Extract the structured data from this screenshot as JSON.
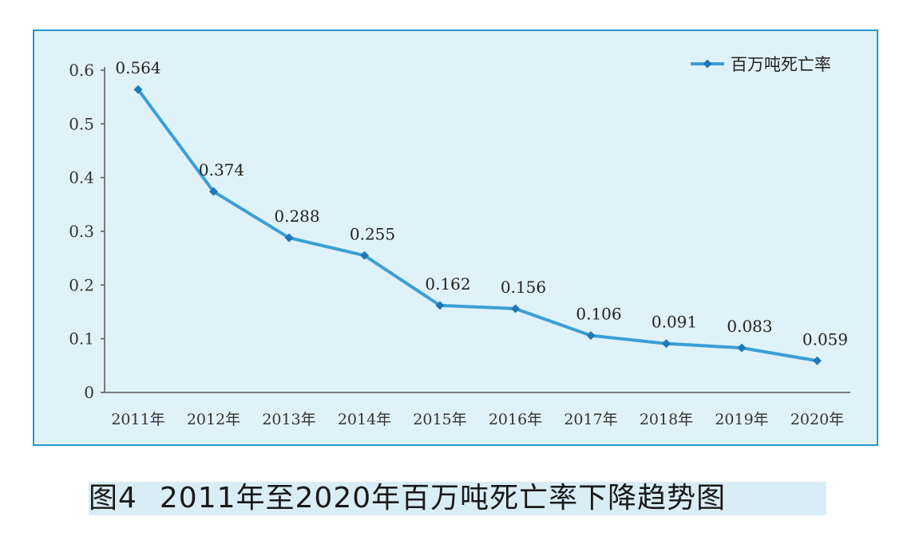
{
  "chart_data": {
    "type": "line",
    "title": "",
    "xlabel": "",
    "ylabel": "",
    "categories": [
      "2011年",
      "2012年",
      "2013年",
      "2014年",
      "2015年",
      "2016年",
      "2017年",
      "2018年",
      "2019年",
      "2020年"
    ],
    "series": [
      {
        "name": "百万吨死亡率",
        "values": [
          0.564,
          0.374,
          0.288,
          0.255,
          0.162,
          0.156,
          0.106,
          0.091,
          0.083,
          0.059
        ],
        "labels": [
          "0.564",
          "0.374",
          "0.288",
          "0.255",
          "0.162",
          "0.156",
          "0.106",
          "0.091",
          "0.083",
          "0.059"
        ]
      }
    ],
    "ylim": [
      0,
      0.6
    ],
    "yticks": [
      0,
      0.1,
      0.2,
      0.3,
      0.4,
      0.5,
      0.6
    ],
    "ytick_labels": [
      "0",
      "0.1",
      "0.2",
      "0.3",
      "0.4",
      "0.5",
      "0.6"
    ],
    "grid": false,
    "legend": "top-right",
    "colors": {
      "line": "#3b9fd4",
      "marker": "#1e78b5",
      "axis": "#555555",
      "panel": "#e0f2f9",
      "border": "#2a96c9"
    }
  },
  "caption": {
    "figure_no": "图4",
    "text": "2011年至2020年百万吨死亡率下降趋势图"
  }
}
